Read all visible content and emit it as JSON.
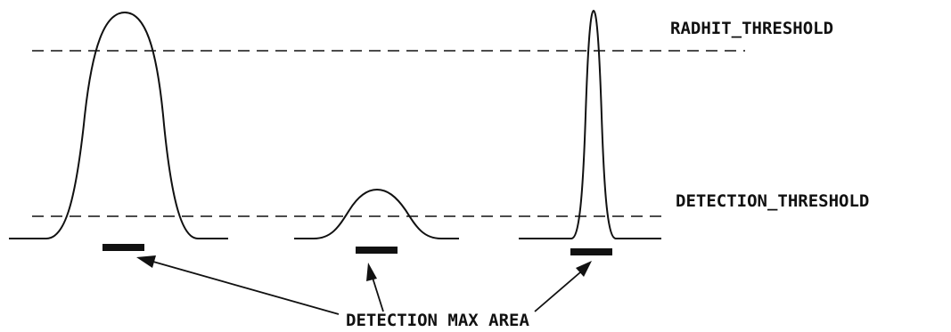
{
  "labels": {
    "radhit_threshold": "RADHIT_THRESHOLD",
    "detection_threshold": "DETECTION_THRESHOLD",
    "detection_max_area": "DETECTION MAX AREA"
  },
  "pulses": [
    {
      "name": "wide-tall-pulse",
      "crosses_radhit_threshold": true,
      "crosses_detection_threshold": true
    },
    {
      "name": "small-pulse",
      "crosses_radhit_threshold": false,
      "crosses_detection_threshold": true
    },
    {
      "name": "narrow-tall-pulse",
      "crosses_radhit_threshold": true,
      "crosses_detection_threshold": true
    }
  ],
  "colors": {
    "ink": "#111111",
    "background": "#ffffff"
  }
}
